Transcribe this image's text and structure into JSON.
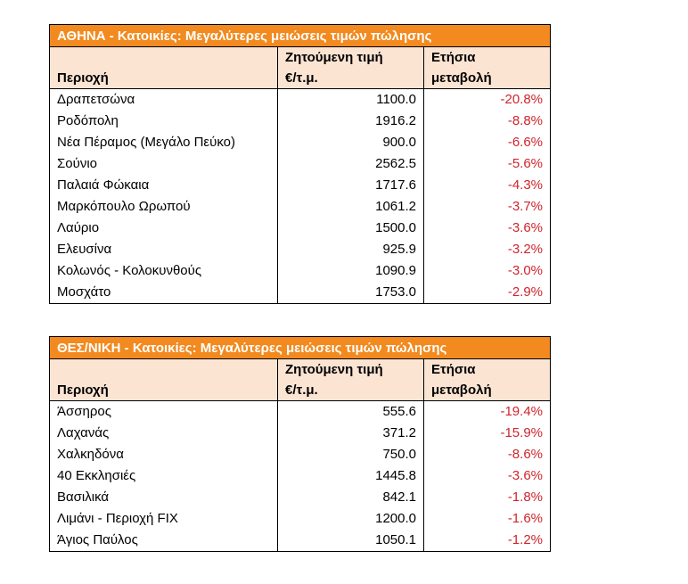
{
  "tables": [
    {
      "title": "ΑΘΗΝΑ - Κατοικίες: Μεγαλύτερες μειώσεις τιμών πώλησης",
      "headers": {
        "region": "Περιοχή",
        "price_line1": "Ζητούμενη τιμή",
        "price_line2": "€/τ.μ.",
        "change_line1": "Ετήσια",
        "change_line2": "μεταβολή"
      },
      "rows": [
        {
          "region": "Δραπετσώνα",
          "price": "1100.0",
          "change": "-20.8%"
        },
        {
          "region": "Ροδόπολη",
          "price": "1916.2",
          "change": "-8.8%"
        },
        {
          "region": "Νέα Πέραμος (Μεγάλο Πεύκο)",
          "price": "900.0",
          "change": "-6.6%"
        },
        {
          "region": "Σούνιο",
          "price": "2562.5",
          "change": "-5.6%"
        },
        {
          "region": "Παλαιά Φώκαια",
          "price": "1717.6",
          "change": "-4.3%"
        },
        {
          "region": "Μαρκόπουλο Ωρωπού",
          "price": "1061.2",
          "change": "-3.7%"
        },
        {
          "region": "Λαύριο",
          "price": "1500.0",
          "change": "-3.6%"
        },
        {
          "region": "Ελευσίνα",
          "price": "925.9",
          "change": "-3.2%"
        },
        {
          "region": "Κολωνός - Κολοκυνθούς",
          "price": "1090.9",
          "change": "-3.0%"
        },
        {
          "region": "Μοσχάτο",
          "price": "1753.0",
          "change": "-2.9%"
        }
      ]
    },
    {
      "title": "ΘΕΣ/ΝΙΚΗ - Κατοικίες: Μεγαλύτερες μειώσεις τιμών πώλησης",
      "headers": {
        "region": "Περιοχή",
        "price_line1": "Ζητούμενη τιμή",
        "price_line2": "€/τ.μ.",
        "change_line1": "Ετήσια",
        "change_line2": "μεταβολή"
      },
      "rows": [
        {
          "region": "Άσσηρος",
          "price": "555.6",
          "change": "-19.4%"
        },
        {
          "region": "Λαχανάς",
          "price": "371.2",
          "change": "-15.9%"
        },
        {
          "region": "Χαλκηδόνα",
          "price": "750.0",
          "change": "-8.6%"
        },
        {
          "region": "40 Εκκλησιές",
          "price": "1445.8",
          "change": "-3.6%"
        },
        {
          "region": "Βασιλικά",
          "price": "842.1",
          "change": "-1.8%"
        },
        {
          "region": "Λιμάνι - Περιοχή FIX",
          "price": "1200.0",
          "change": "-1.6%"
        },
        {
          "region": "Άγιος Παύλος",
          "price": "1050.1",
          "change": "-1.2%"
        }
      ]
    }
  ],
  "colors": {
    "title_bg": "#f28a1f",
    "title_text": "#ffffff",
    "header_bg": "#fce4d3",
    "negative_text": "#d0242b"
  }
}
